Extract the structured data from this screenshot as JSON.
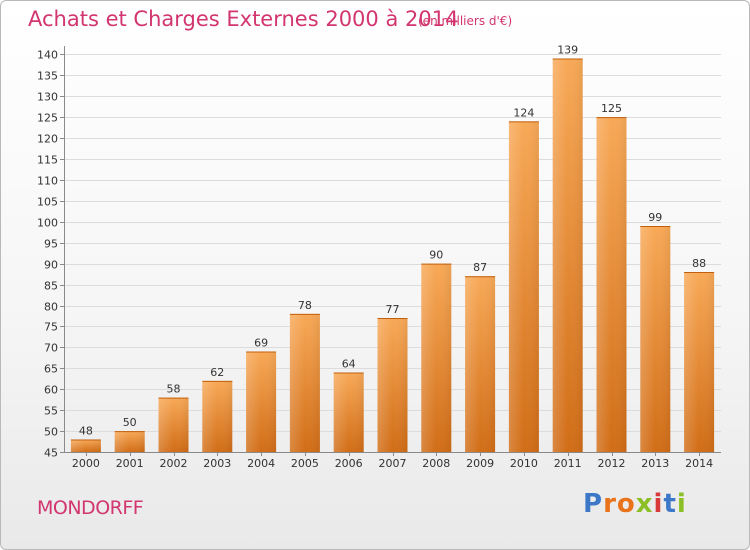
{
  "title": "Achats et Charges Externes 2000 à 2014",
  "subtitle": "(en milliers d'€)",
  "commune": "MONDORFF",
  "logo": {
    "text": "Proxiti",
    "colors": [
      "#3d78c8",
      "#e8731a",
      "#e8731a",
      "#8cbf26",
      "#d83a3a",
      "#3d78c8",
      "#8cbf26"
    ]
  },
  "colors": {
    "accent": "#d2356f",
    "bar_light": "#f8a957",
    "bar_dark": "#d16d17"
  },
  "chart_data": {
    "type": "bar",
    "categories": [
      "2000",
      "2001",
      "2002",
      "2003",
      "2004",
      "2005",
      "2006",
      "2007",
      "2008",
      "2009",
      "2010",
      "2011",
      "2012",
      "2013",
      "2014"
    ],
    "values": [
      48,
      50,
      58,
      62,
      69,
      78,
      64,
      77,
      90,
      87,
      124,
      139,
      125,
      99,
      88
    ],
    "data_labels": [
      "48",
      "50",
      "58",
      "62",
      "69",
      "78",
      "64",
      "77",
      "90",
      "87",
      "124",
      "139",
      "125",
      "99",
      "88"
    ],
    "yticks": [
      "45",
      "50",
      "55",
      "60",
      "65",
      "70",
      "75",
      "80",
      "85",
      "90",
      "95",
      "100",
      "105",
      "110",
      "115",
      "120",
      "125",
      "130",
      "135",
      "140"
    ],
    "ylim": [
      45,
      142
    ],
    "grid": true
  }
}
